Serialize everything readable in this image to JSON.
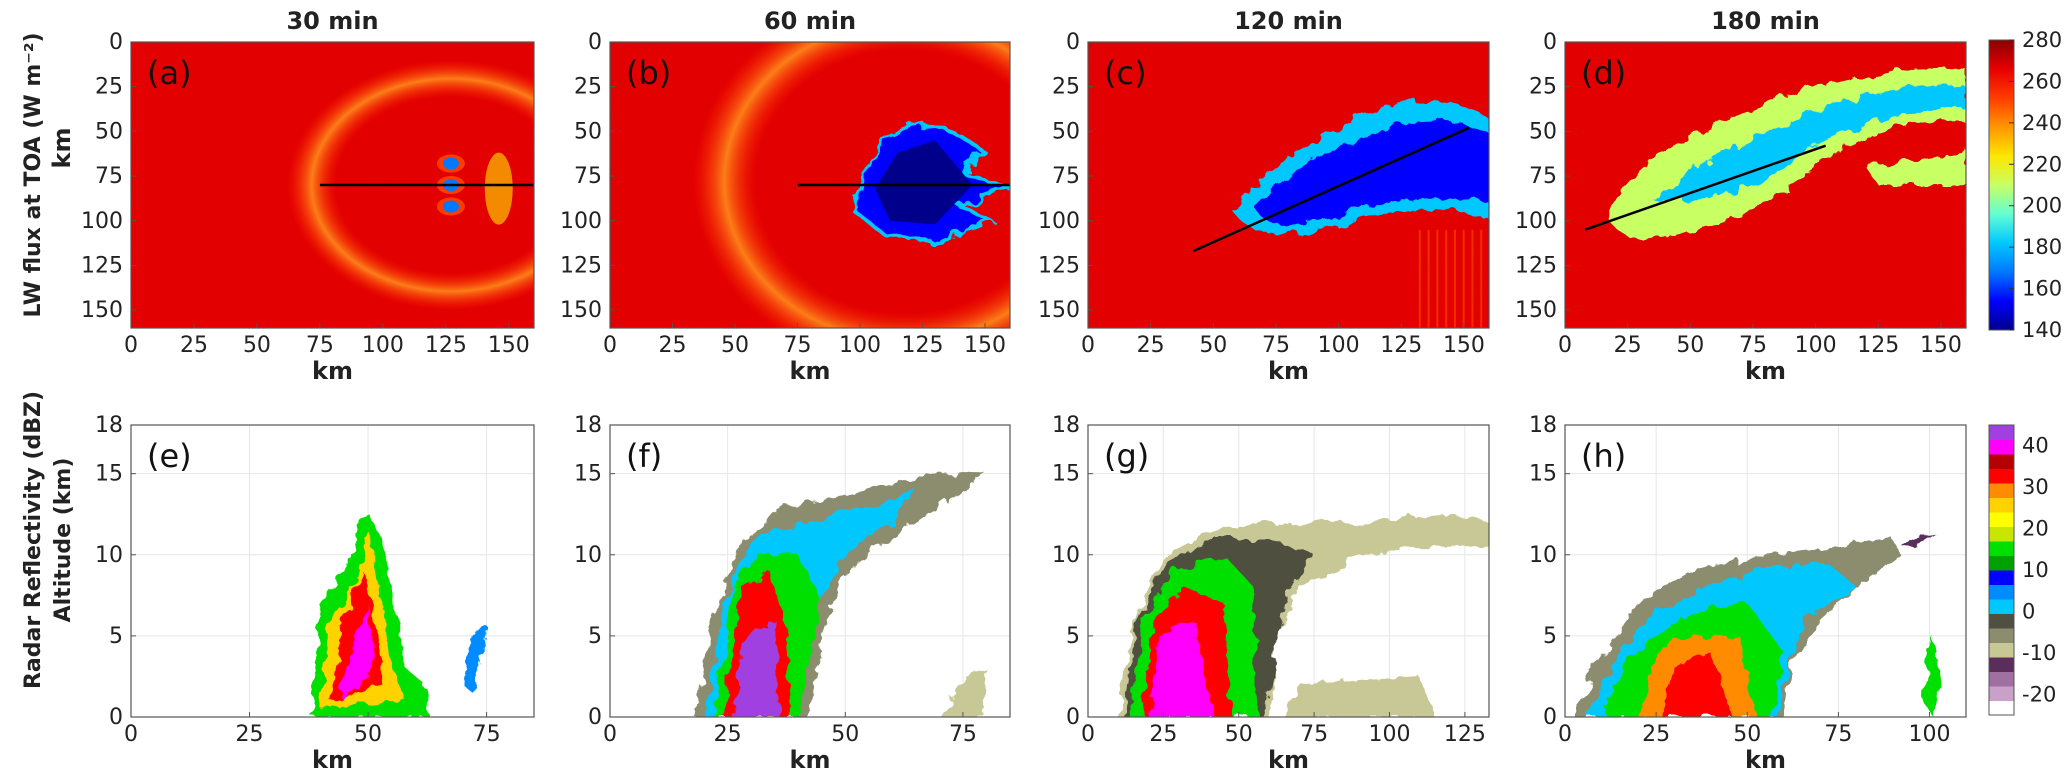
{
  "row_labels": {
    "top": [
      "LW flux at TOA (W m⁻²)",
      "km"
    ],
    "bottom": [
      "Radar Reflectivity (dBZ)",
      "Altitude (km)"
    ]
  },
  "colors": {
    "lw_cmap": [
      "#00008b",
      "#0000ff",
      "#0078ff",
      "#00c8ff",
      "#64ffd2",
      "#c8ff64",
      "#ffe600",
      "#ff9600",
      "#ff3c00",
      "#e60000",
      "#8b0000"
    ],
    "dbz_levels": [
      "#ffffff",
      "#c8a0c8",
      "#a070a0",
      "#5a2d5a",
      "#c8c896",
      "#8c8c6e",
      "#505040",
      "#00c8ff",
      "#008cff",
      "#0000ff",
      "#00a000",
      "#00e000",
      "#c8e600",
      "#ffff00",
      "#ffd200",
      "#ff8c00",
      "#ff0000",
      "#b40000",
      "#ff00ff",
      "#a040e0"
    ]
  },
  "chart_data": [
    {
      "type": "heatmap",
      "panel": "(a)",
      "title": "30 min",
      "xlabel": "km",
      "ylabel": "km",
      "xticks": [
        "0",
        "25",
        "50",
        "75",
        "100",
        "125",
        "150"
      ],
      "yticks": [
        "0",
        "25",
        "50",
        "75",
        "100",
        "125",
        "150"
      ],
      "xlim": [
        0,
        160
      ],
      "ylim": [
        160,
        0
      ],
      "transect": {
        "x": [
          75,
          160
        ],
        "y": [
          80,
          80
        ]
      }
    },
    {
      "type": "heatmap",
      "panel": "(b)",
      "title": "60 min",
      "xlabel": "km",
      "ylabel": "",
      "xticks": [
        "0",
        "25",
        "50",
        "75",
        "100",
        "125",
        "150"
      ],
      "yticks": [
        "0",
        "25",
        "50",
        "75",
        "100",
        "125",
        "150"
      ],
      "xlim": [
        0,
        160
      ],
      "ylim": [
        160,
        0
      ],
      "transect": {
        "x": [
          75,
          160
        ],
        "y": [
          80,
          80
        ]
      }
    },
    {
      "type": "heatmap",
      "panel": "(c)",
      "title": "120 min",
      "xlabel": "km",
      "ylabel": "",
      "xticks": [
        "0",
        "25",
        "50",
        "75",
        "100",
        "125",
        "150"
      ],
      "yticks": [
        "0",
        "25",
        "50",
        "75",
        "100",
        "125",
        "150"
      ],
      "xlim": [
        0,
        160
      ],
      "ylim": [
        160,
        0
      ],
      "transect": {
        "x": [
          42,
          152
        ],
        "y": [
          117,
          48
        ]
      }
    },
    {
      "type": "heatmap",
      "panel": "(d)",
      "title": "180 min",
      "xlabel": "km",
      "ylabel": "",
      "xticks": [
        "0",
        "25",
        "50",
        "75",
        "100",
        "125",
        "150"
      ],
      "yticks": [
        "0",
        "25",
        "50",
        "75",
        "100",
        "125",
        "150"
      ],
      "xlim": [
        0,
        160
      ],
      "ylim": [
        160,
        0
      ],
      "transect": {
        "x": [
          8,
          104
        ],
        "y": [
          105,
          58
        ]
      }
    },
    {
      "type": "heatmap",
      "panel": "(e)",
      "title": "",
      "xlabel": "km",
      "ylabel": "Altitude (km)",
      "xticks": [
        "0",
        "25",
        "50",
        "75"
      ],
      "yticks": [
        "0",
        "5",
        "10",
        "15",
        "18"
      ],
      "xlim": [
        0,
        85
      ],
      "ylim": [
        0,
        18
      ]
    },
    {
      "type": "heatmap",
      "panel": "(f)",
      "title": "",
      "xlabel": "km",
      "ylabel": "",
      "xticks": [
        "0",
        "25",
        "50",
        "75"
      ],
      "yticks": [
        "0",
        "5",
        "10",
        "15",
        "18"
      ],
      "xlim": [
        0,
        85
      ],
      "ylim": [
        0,
        18
      ]
    },
    {
      "type": "heatmap",
      "panel": "(g)",
      "title": "",
      "xlabel": "km",
      "ylabel": "",
      "xticks": [
        "0",
        "25",
        "50",
        "75",
        "100",
        "125"
      ],
      "yticks": [
        "0",
        "5",
        "10",
        "15",
        "18"
      ],
      "xlim": [
        0,
        133
      ],
      "ylim": [
        0,
        18
      ]
    },
    {
      "type": "heatmap",
      "panel": "(h)",
      "title": "",
      "xlabel": "km",
      "ylabel": "",
      "xticks": [
        "0",
        "25",
        "50",
        "75",
        "100"
      ],
      "yticks": [
        "0",
        "5",
        "10",
        "15",
        "18"
      ],
      "xlim": [
        0,
        110
      ],
      "ylim": [
        0,
        18
      ]
    }
  ],
  "colorbars": {
    "lw": {
      "ticks": [
        "280",
        "260",
        "240",
        "220",
        "200",
        "180",
        "160",
        "140"
      ],
      "range": [
        140,
        280
      ]
    },
    "dbz": {
      "ticks": [
        "40",
        "30",
        "20",
        "10",
        "0",
        "-10",
        "-20"
      ],
      "range": [
        -25,
        45
      ]
    }
  }
}
